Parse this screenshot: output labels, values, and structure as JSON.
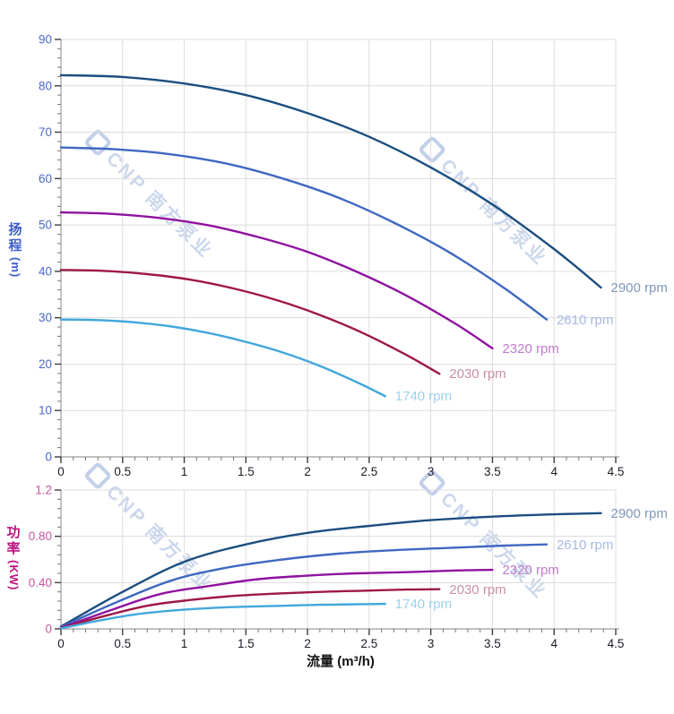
{
  "axes": {
    "flow_label": "流量 (m³/h)",
    "head_char1": "扬",
    "head_char2": "程",
    "head_unit": "(m)",
    "power_char1": "功",
    "power_char2": "率",
    "power_unit": "(KW)"
  },
  "watermark": {
    "text": "CNP 南方泵业"
  },
  "colors": {
    "grid": "#DCDCDC",
    "axis_line": "#9C9C9C",
    "major_tick": "#3D3D3D",
    "minor_tick": "#777777",
    "head_tick_label": "#4A67C8",
    "power_tick_label": "#C4559F",
    "x_tick_label": "#1C1C28"
  },
  "chart_data": [
    {
      "type": "line",
      "id": "head",
      "ylabel": "扬程 (m)",
      "xlabel": "流量 (m³/h)",
      "xlim": [
        0,
        4.5
      ],
      "ylim": [
        0,
        90
      ],
      "x_major_step": 0.5,
      "x_minor_step": 0.1,
      "y_major_ticks": [
        0,
        10,
        20,
        30,
        40,
        50,
        60,
        70,
        80,
        90
      ],
      "y_tick_labels": [
        "0",
        "10",
        "20",
        "30",
        "40",
        "50",
        "60",
        "70",
        "80",
        "90"
      ],
      "y_minor_step": 2,
      "x_tick_labels": [
        "0",
        "0.5",
        "1",
        "1.5",
        "2",
        "2.5",
        "3",
        "3.5",
        "4",
        "4.5"
      ],
      "grid": true,
      "legend_position": "end-of-curve",
      "series": [
        {
          "name": "2900 rpm",
          "rpm": 2900,
          "color": "#1B4E7F",
          "label_color": "#7E9ABC",
          "points": [
            [
              0,
              82.3
            ],
            [
              0.5,
              81.9
            ],
            [
              1,
              80.5
            ],
            [
              1.5,
              78.0
            ],
            [
              2,
              74.1
            ],
            [
              2.5,
              69.0
            ],
            [
              3,
              62.4
            ],
            [
              3.5,
              54.4
            ],
            [
              4,
              44.8
            ],
            [
              4.38,
              36.5
            ]
          ]
        },
        {
          "name": "2610 rpm",
          "rpm": 2610,
          "color": "#3E68C1",
          "label_color": "#A7B9E4",
          "points": [
            [
              0,
              66.7
            ],
            [
              0.45,
              66.3
            ],
            [
              0.9,
              65.2
            ],
            [
              1.35,
              63.2
            ],
            [
              1.8,
              60.0
            ],
            [
              2.25,
              55.9
            ],
            [
              2.7,
              50.5
            ],
            [
              3.15,
              44.1
            ],
            [
              3.6,
              36.3
            ],
            [
              3.94,
              29.6
            ]
          ]
        },
        {
          "name": "2320 rpm",
          "rpm": 2320,
          "color": "#8F12A0",
          "label_color": "#BF7CCC",
          "points": [
            [
              0,
              52.7
            ],
            [
              0.4,
              52.4
            ],
            [
              0.8,
              51.5
            ],
            [
              1.2,
              49.9
            ],
            [
              1.6,
              47.4
            ],
            [
              2,
              44.2
            ],
            [
              2.4,
              39.9
            ],
            [
              2.8,
              34.8
            ],
            [
              3.2,
              28.7
            ],
            [
              3.5,
              23.4
            ]
          ]
        },
        {
          "name": "2030 rpm",
          "rpm": 2030,
          "color": "#9E1843",
          "label_color": "#C98FA4",
          "points": [
            [
              0,
              40.3
            ],
            [
              0.35,
              40.1
            ],
            [
              0.7,
              39.4
            ],
            [
              1.05,
              38.2
            ],
            [
              1.4,
              36.3
            ],
            [
              1.75,
              33.8
            ],
            [
              2.1,
              30.6
            ],
            [
              2.45,
              26.7
            ],
            [
              2.8,
              22.0
            ],
            [
              3.07,
              17.9
            ]
          ]
        },
        {
          "name": "1740 rpm",
          "rpm": 1740,
          "color": "#41A7DC",
          "label_color": "#9CD2F0",
          "points": [
            [
              0,
              29.6
            ],
            [
              0.3,
              29.5
            ],
            [
              0.6,
              29.0
            ],
            [
              0.9,
              28.1
            ],
            [
              1.2,
              26.7
            ],
            [
              1.5,
              24.8
            ],
            [
              1.8,
              22.5
            ],
            [
              2.1,
              19.6
            ],
            [
              2.4,
              16.1
            ],
            [
              2.63,
              13.1
            ]
          ]
        }
      ]
    },
    {
      "type": "line",
      "id": "power",
      "ylabel": "功率 (KW)",
      "xlabel": "流量 (m³/h)",
      "xlim": [
        0,
        4.5
      ],
      "ylim": [
        0,
        1.2
      ],
      "x_major_step": 0.5,
      "x_minor_step": 0.1,
      "y_major_ticks": [
        0,
        0.4,
        0.8,
        1.2
      ],
      "y_tick_labels": [
        "0",
        "0.40",
        "0.80",
        "1.2"
      ],
      "y_minor_step": 0.08,
      "x_tick_labels": [
        "0",
        "0.5",
        "1",
        "1.5",
        "2",
        "2.5",
        "3",
        "3.5",
        "4",
        "4.5"
      ],
      "grid": true,
      "legend_position": "end-of-curve",
      "series": [
        {
          "name": "2900 rpm",
          "rpm": 2900,
          "color": "#1B4E7F",
          "label_color": "#7E9ABC",
          "points": [
            [
              0,
              0.02
            ],
            [
              0.5,
              0.32
            ],
            [
              1,
              0.58
            ],
            [
              1.5,
              0.73
            ],
            [
              2,
              0.83
            ],
            [
              2.5,
              0.89
            ],
            [
              3,
              0.94
            ],
            [
              3.5,
              0.97
            ],
            [
              4,
              0.99
            ],
            [
              4.38,
              1.0
            ]
          ]
        },
        {
          "name": "2610 rpm",
          "rpm": 2610,
          "color": "#3E68C1",
          "label_color": "#A7B9E4",
          "points": [
            [
              0,
              0.015
            ],
            [
              0.45,
              0.23
            ],
            [
              0.9,
              0.42
            ],
            [
              1.35,
              0.53
            ],
            [
              1.8,
              0.6
            ],
            [
              2.25,
              0.65
            ],
            [
              2.7,
              0.68
            ],
            [
              3.15,
              0.7
            ],
            [
              3.6,
              0.72
            ],
            [
              3.94,
              0.73
            ]
          ]
        },
        {
          "name": "2320 rpm",
          "rpm": 2320,
          "color": "#8F12A0",
          "label_color": "#BF7CCC",
          "points": [
            [
              0,
              0.01
            ],
            [
              0.4,
              0.16
            ],
            [
              0.8,
              0.3
            ],
            [
              1.2,
              0.37
            ],
            [
              1.6,
              0.43
            ],
            [
              2,
              0.46
            ],
            [
              2.4,
              0.48
            ],
            [
              2.8,
              0.49
            ],
            [
              3.2,
              0.505
            ],
            [
              3.5,
              0.51
            ]
          ]
        },
        {
          "name": "2030 rpm",
          "rpm": 2030,
          "color": "#9E1843",
          "label_color": "#C98FA4",
          "points": [
            [
              0,
              0.007
            ],
            [
              0.35,
              0.11
            ],
            [
              0.7,
              0.2
            ],
            [
              1.05,
              0.25
            ],
            [
              1.4,
              0.285
            ],
            [
              1.75,
              0.305
            ],
            [
              2.1,
              0.32
            ],
            [
              2.45,
              0.33
            ],
            [
              2.8,
              0.34
            ],
            [
              3.07,
              0.343
            ]
          ]
        },
        {
          "name": "1740 rpm",
          "rpm": 1740,
          "color": "#41A7DC",
          "label_color": "#9CD2F0",
          "points": [
            [
              0,
              0.005
            ],
            [
              0.3,
              0.07
            ],
            [
              0.6,
              0.125
            ],
            [
              0.9,
              0.158
            ],
            [
              1.2,
              0.18
            ],
            [
              1.5,
              0.192
            ],
            [
              1.8,
              0.2
            ],
            [
              2.1,
              0.208
            ],
            [
              2.4,
              0.213
            ],
            [
              2.63,
              0.216
            ]
          ]
        }
      ]
    }
  ]
}
